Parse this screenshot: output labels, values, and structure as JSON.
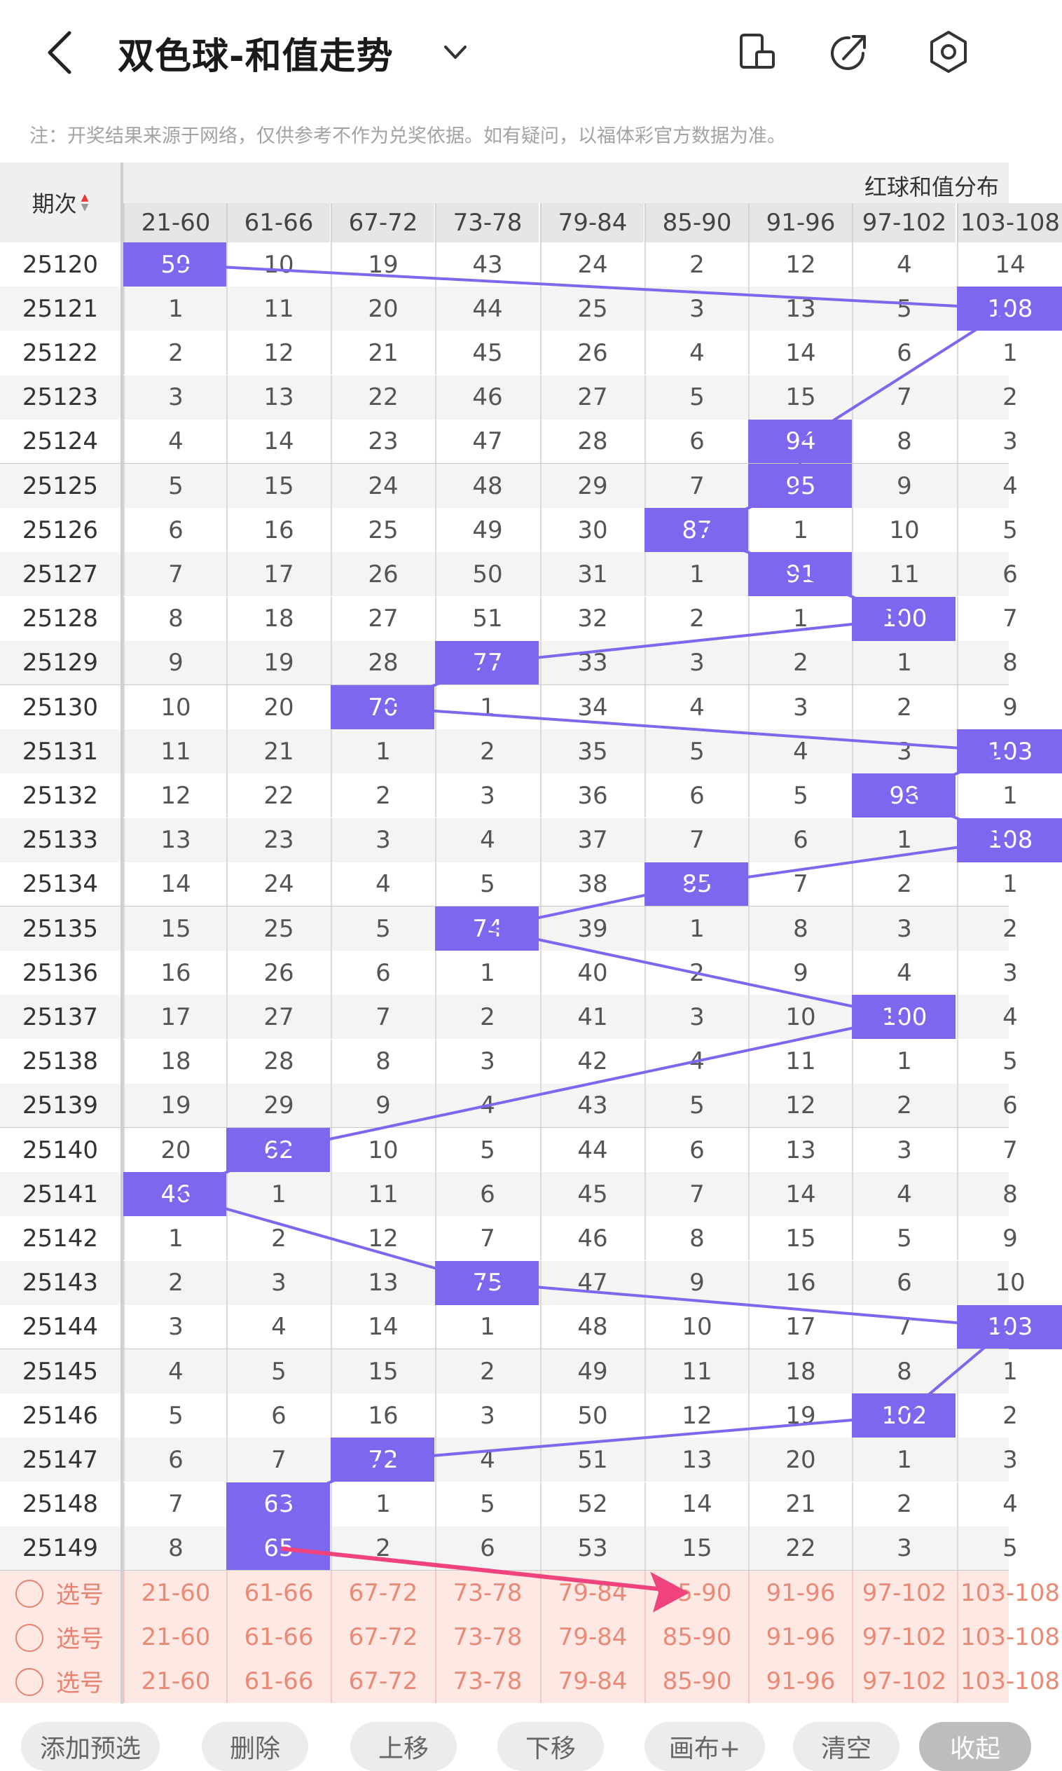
{
  "header": {
    "title": "双色球-和值走势",
    "icons": [
      "back-arrow-icon",
      "chevron-down-icon",
      "phone-rotate-icon",
      "share-icon",
      "settings-icon"
    ]
  },
  "notice": "注：开奖结果来源于网络，仅供参考不作为兑奖依据。如有疑问，以福体彩官方数据为准。",
  "table": {
    "issue_header": "期次",
    "group_header": "红球和值分布",
    "columns": [
      "21-60",
      "61-66",
      "67-72",
      "73-78",
      "79-84",
      "85-90",
      "91-96",
      "97-102",
      "103-108"
    ],
    "rows": [
      {
        "issue": "25120",
        "cells": [
          "59",
          "10",
          "19",
          "43",
          "24",
          "2",
          "12",
          "4",
          "14"
        ],
        "hit": 0
      },
      {
        "issue": "25121",
        "cells": [
          "1",
          "11",
          "20",
          "44",
          "25",
          "3",
          "13",
          "5",
          "108"
        ],
        "hit": 8
      },
      {
        "issue": "25122",
        "cells": [
          "2",
          "12",
          "21",
          "45",
          "26",
          "4",
          "14",
          "6",
          "1"
        ],
        "hit": -1
      },
      {
        "issue": "25123",
        "cells": [
          "3",
          "13",
          "22",
          "46",
          "27",
          "5",
          "15",
          "7",
          "2"
        ],
        "hit": -1
      },
      {
        "issue": "25124",
        "cells": [
          "4",
          "14",
          "23",
          "47",
          "28",
          "6",
          "94",
          "8",
          "3"
        ],
        "hit": 6
      },
      {
        "issue": "25125",
        "cells": [
          "5",
          "15",
          "24",
          "48",
          "29",
          "7",
          "95",
          "9",
          "4"
        ],
        "hit": 6
      },
      {
        "issue": "25126",
        "cells": [
          "6",
          "16",
          "25",
          "49",
          "30",
          "87",
          "1",
          "10",
          "5"
        ],
        "hit": 5
      },
      {
        "issue": "25127",
        "cells": [
          "7",
          "17",
          "26",
          "50",
          "31",
          "1",
          "91",
          "11",
          "6"
        ],
        "hit": 6
      },
      {
        "issue": "25128",
        "cells": [
          "8",
          "18",
          "27",
          "51",
          "32",
          "2",
          "1",
          "100",
          "7"
        ],
        "hit": 7
      },
      {
        "issue": "25129",
        "cells": [
          "9",
          "19",
          "28",
          "77",
          "33",
          "3",
          "2",
          "1",
          "8"
        ],
        "hit": 3
      },
      {
        "issue": "25130",
        "cells": [
          "10",
          "20",
          "70",
          "1",
          "34",
          "4",
          "3",
          "2",
          "9"
        ],
        "hit": 2
      },
      {
        "issue": "25131",
        "cells": [
          "11",
          "21",
          "1",
          "2",
          "35",
          "5",
          "4",
          "3",
          "103"
        ],
        "hit": 8
      },
      {
        "issue": "25132",
        "cells": [
          "12",
          "22",
          "2",
          "3",
          "36",
          "6",
          "5",
          "98",
          "1"
        ],
        "hit": 7
      },
      {
        "issue": "25133",
        "cells": [
          "13",
          "23",
          "3",
          "4",
          "37",
          "7",
          "6",
          "1",
          "108"
        ],
        "hit": 8
      },
      {
        "issue": "25134",
        "cells": [
          "14",
          "24",
          "4",
          "5",
          "38",
          "85",
          "7",
          "2",
          "1"
        ],
        "hit": 5
      },
      {
        "issue": "25135",
        "cells": [
          "15",
          "25",
          "5",
          "74",
          "39",
          "1",
          "8",
          "3",
          "2"
        ],
        "hit": 3
      },
      {
        "issue": "25136",
        "cells": [
          "16",
          "26",
          "6",
          "1",
          "40",
          "2",
          "9",
          "4",
          "3"
        ],
        "hit": -1
      },
      {
        "issue": "25137",
        "cells": [
          "17",
          "27",
          "7",
          "2",
          "41",
          "3",
          "10",
          "100",
          "4"
        ],
        "hit": 7
      },
      {
        "issue": "25138",
        "cells": [
          "18",
          "28",
          "8",
          "3",
          "42",
          "4",
          "11",
          "1",
          "5"
        ],
        "hit": -1
      },
      {
        "issue": "25139",
        "cells": [
          "19",
          "29",
          "9",
          "4",
          "43",
          "5",
          "12",
          "2",
          "6"
        ],
        "hit": -1
      },
      {
        "issue": "25140",
        "cells": [
          "20",
          "62",
          "10",
          "5",
          "44",
          "6",
          "13",
          "3",
          "7"
        ],
        "hit": 1
      },
      {
        "issue": "25141",
        "cells": [
          "46",
          "1",
          "11",
          "6",
          "45",
          "7",
          "14",
          "4",
          "8"
        ],
        "hit": 0
      },
      {
        "issue": "25142",
        "cells": [
          "1",
          "2",
          "12",
          "7",
          "46",
          "8",
          "15",
          "5",
          "9"
        ],
        "hit": -1
      },
      {
        "issue": "25143",
        "cells": [
          "2",
          "3",
          "13",
          "75",
          "47",
          "9",
          "16",
          "6",
          "10"
        ],
        "hit": 3
      },
      {
        "issue": "25144",
        "cells": [
          "3",
          "4",
          "14",
          "1",
          "48",
          "10",
          "17",
          "7",
          "103"
        ],
        "hit": 8
      },
      {
        "issue": "25145",
        "cells": [
          "4",
          "5",
          "15",
          "2",
          "49",
          "11",
          "18",
          "8",
          "1"
        ],
        "hit": -1
      },
      {
        "issue": "25146",
        "cells": [
          "5",
          "6",
          "16",
          "3",
          "50",
          "12",
          "19",
          "102",
          "2"
        ],
        "hit": 7
      },
      {
        "issue": "25147",
        "cells": [
          "6",
          "7",
          "72",
          "4",
          "51",
          "13",
          "20",
          "1",
          "3"
        ],
        "hit": 2
      },
      {
        "issue": "25148",
        "cells": [
          "7",
          "63",
          "1",
          "5",
          "52",
          "14",
          "21",
          "2",
          "4"
        ],
        "hit": 1
      },
      {
        "issue": "25149",
        "cells": [
          "8",
          "65",
          "2",
          "6",
          "53",
          "15",
          "22",
          "3",
          "5"
        ],
        "hit": 1
      }
    ],
    "pick_label": "选号",
    "pick_rows": 3
  },
  "toolbar": {
    "buttons": [
      "添加预选",
      "删除",
      "上移",
      "下移",
      "画布+",
      "清空",
      "收起"
    ]
  },
  "colors": {
    "hit": "#7b68ee",
    "arrow": "#f0437e",
    "pick_bg": "#fde8e4",
    "pick_text": "#ea8a76"
  }
}
